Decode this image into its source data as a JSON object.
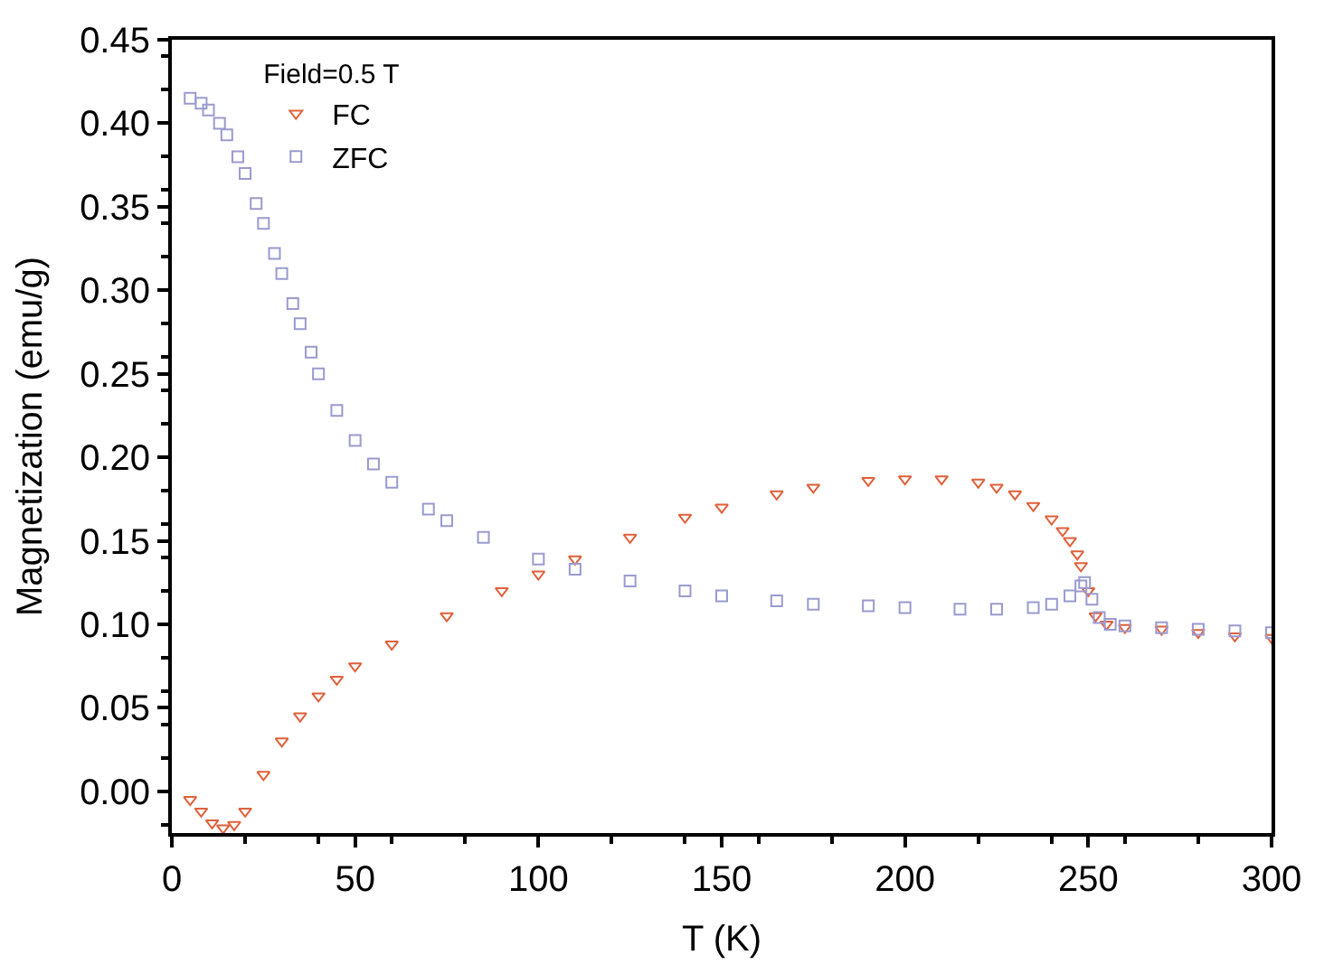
{
  "chart_data": {
    "type": "scatter",
    "xlabel": "T (K)",
    "ylabel": "Magnetization (emu/g)",
    "legend_title": "Field=0.5 T",
    "legend": "top left",
    "xlim": [
      0,
      300
    ],
    "xticks": [
      0,
      50,
      100,
      150,
      200,
      250,
      300
    ],
    "ylim": [
      -0.025,
      0.45
    ],
    "yticks": [
      {
        "value": 0.0,
        "label": "0.00"
      },
      0.05,
      {
        "value": 0.1,
        "label": "0.10"
      },
      0.15,
      {
        "value": 0.2,
        "label": "0.20"
      },
      0.25,
      {
        "value": 0.3,
        "label": "0.30"
      },
      0.35,
      {
        "value": 0.4,
        "label": "0.40"
      },
      0.45
    ],
    "series": [
      {
        "name": "FC",
        "color": "#e0603a",
        "marker": "triangle-down",
        "x": [
          5,
          8,
          11,
          14,
          17,
          20,
          25,
          30,
          35,
          40,
          45,
          50,
          60,
          75,
          90,
          100,
          110,
          125,
          140,
          150,
          165,
          175,
          190,
          200,
          210,
          220,
          225,
          230,
          235,
          240,
          243,
          245,
          247,
          248,
          250,
          252,
          255,
          260,
          270,
          280,
          290,
          300
        ],
        "values": [
          -0.005,
          -0.012,
          -0.019,
          -0.022,
          -0.02,
          -0.012,
          0.01,
          0.03,
          0.045,
          0.057,
          0.067,
          0.075,
          0.088,
          0.105,
          0.12,
          0.13,
          0.139,
          0.152,
          0.164,
          0.17,
          0.178,
          0.182,
          0.186,
          0.187,
          0.187,
          0.185,
          0.182,
          0.178,
          0.171,
          0.163,
          0.156,
          0.15,
          0.142,
          0.135,
          0.12,
          0.105,
          0.1,
          0.098,
          0.097,
          0.095,
          0.093,
          0.092
        ]
      },
      {
        "name": "ZFC",
        "color": "#9a9ad0",
        "marker": "square",
        "x": [
          5,
          8,
          10,
          13,
          15,
          18,
          20,
          23,
          25,
          28,
          30,
          33,
          35,
          38,
          40,
          45,
          50,
          55,
          60,
          70,
          75,
          85,
          100,
          110,
          125,
          140,
          150,
          165,
          175,
          190,
          200,
          215,
          225,
          235,
          240,
          245,
          248,
          249,
          251,
          253,
          256,
          260,
          270,
          280,
          290,
          300
        ],
        "values": [
          0.415,
          0.412,
          0.408,
          0.4,
          0.393,
          0.38,
          0.37,
          0.352,
          0.34,
          0.322,
          0.31,
          0.292,
          0.28,
          0.263,
          0.25,
          0.228,
          0.21,
          0.196,
          0.185,
          0.169,
          0.162,
          0.152,
          0.139,
          0.133,
          0.126,
          0.12,
          0.117,
          0.114,
          0.112,
          0.111,
          0.11,
          0.109,
          0.109,
          0.11,
          0.112,
          0.117,
          0.123,
          0.125,
          0.115,
          0.104,
          0.1,
          0.099,
          0.098,
          0.097,
          0.096,
          0.095
        ]
      }
    ]
  }
}
